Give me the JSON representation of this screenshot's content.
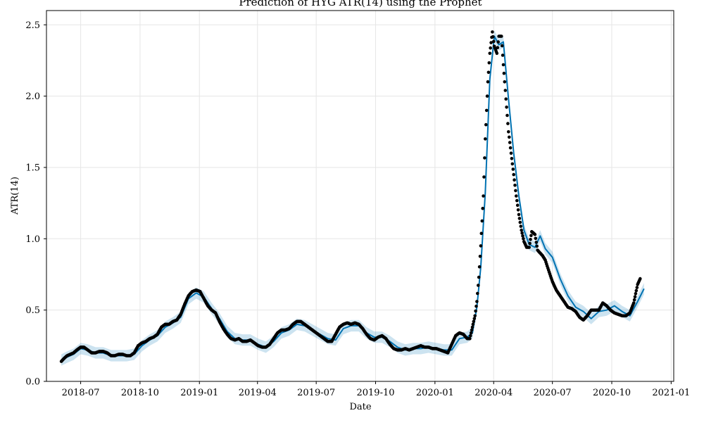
{
  "chart_data": {
    "type": "line",
    "title": "Prediction of HYG  ATR(14) using the Prophet",
    "xlabel": "Date",
    "ylabel": "ATR(14)",
    "ylim": [
      0,
      2.6
    ],
    "xlim": [
      "2018-05-09",
      "2021-01-05"
    ],
    "grid": true,
    "x_ticks": [
      {
        "date": "2018-07-01",
        "label": "2018-07"
      },
      {
        "date": "2018-10-01",
        "label": "2018-10"
      },
      {
        "date": "2019-01-01",
        "label": "2019-01"
      },
      {
        "date": "2019-04-01",
        "label": "2019-04"
      },
      {
        "date": "2019-07-01",
        "label": "2019-07"
      },
      {
        "date": "2019-10-01",
        "label": "2019-10"
      },
      {
        "date": "2020-01-01",
        "label": "2020-01"
      },
      {
        "date": "2020-04-01",
        "label": "2020-04"
      },
      {
        "date": "2020-07-01",
        "label": "2020-07"
      },
      {
        "date": "2020-10-01",
        "label": "2020-10"
      },
      {
        "date": "2021-01-01",
        "label": "2021-01"
      }
    ],
    "y_ticks": [
      {
        "value": 0.0,
        "label": "0.0"
      },
      {
        "value": 0.5,
        "label": "0.5"
      },
      {
        "value": 1.0,
        "label": "1.0"
      },
      {
        "value": 1.5,
        "label": "1.5"
      },
      {
        "value": 2.0,
        "label": "2.0"
      },
      {
        "value": 2.5,
        "label": "2.5"
      }
    ],
    "colors": {
      "forecast": "#0072B2",
      "band": "#0072B2",
      "actual": "#000000",
      "grid": "#e6e6e6"
    },
    "series": [
      {
        "role": "actual",
        "x": [
          "2018-06-01",
          "2018-06-05",
          "2018-06-10",
          "2018-06-15",
          "2018-06-20",
          "2018-06-25",
          "2018-07-01",
          "2018-07-06",
          "2018-07-12",
          "2018-07-18",
          "2018-07-24",
          "2018-07-30",
          "2018-08-05",
          "2018-08-11",
          "2018-08-17",
          "2018-08-23",
          "2018-08-29",
          "2018-09-04",
          "2018-09-10",
          "2018-09-16",
          "2018-09-22",
          "2018-09-28",
          "2018-10-04",
          "2018-10-10",
          "2018-10-16",
          "2018-10-22",
          "2018-10-28",
          "2018-11-03",
          "2018-11-09",
          "2018-11-15",
          "2018-11-21",
          "2018-11-27",
          "2018-12-03",
          "2018-12-09",
          "2018-12-15",
          "2018-12-21",
          "2018-12-27",
          "2019-01-02",
          "2019-01-08",
          "2019-01-14",
          "2019-01-20",
          "2019-01-26",
          "2019-02-01",
          "2019-02-07",
          "2019-02-13",
          "2019-02-19",
          "2019-02-25",
          "2019-03-03",
          "2019-03-09",
          "2019-03-15",
          "2019-03-21",
          "2019-03-27",
          "2019-04-02",
          "2019-04-08",
          "2019-04-14",
          "2019-04-20",
          "2019-04-26",
          "2019-05-02",
          "2019-05-08",
          "2019-05-14",
          "2019-05-20",
          "2019-05-26",
          "2019-06-01",
          "2019-06-07",
          "2019-06-13",
          "2019-06-19",
          "2019-06-25",
          "2019-07-01",
          "2019-07-07",
          "2019-07-13",
          "2019-07-19",
          "2019-07-25",
          "2019-07-31",
          "2019-08-06",
          "2019-08-12",
          "2019-08-18",
          "2019-08-24",
          "2019-08-30",
          "2019-09-05",
          "2019-09-11",
          "2019-09-17",
          "2019-09-23",
          "2019-09-29",
          "2019-10-05",
          "2019-10-11",
          "2019-10-17",
          "2019-10-23",
          "2019-10-29",
          "2019-11-04",
          "2019-11-10",
          "2019-11-16",
          "2019-11-22",
          "2019-11-28",
          "2019-12-04",
          "2019-12-10",
          "2019-12-16",
          "2019-12-22",
          "2019-12-28",
          "2020-01-03",
          "2020-01-09",
          "2020-01-15",
          "2020-01-21",
          "2020-01-27",
          "2020-02-02",
          "2020-02-08",
          "2020-02-14",
          "2020-02-20",
          "2020-02-24",
          "2020-02-28",
          "2020-03-03",
          "2020-03-06",
          "2020-03-09",
          "2020-03-12",
          "2020-03-16",
          "2020-03-19",
          "2020-03-23",
          "2020-03-26",
          "2020-03-30",
          "2020-04-02",
          "2020-04-06",
          "2020-04-09",
          "2020-04-13",
          "2020-04-16",
          "2020-04-20",
          "2020-04-24",
          "2020-04-28",
          "2020-05-02",
          "2020-05-06",
          "2020-05-10",
          "2020-05-14",
          "2020-05-18",
          "2020-05-22",
          "2020-05-26",
          "2020-05-30",
          "2020-06-04",
          "2020-06-08",
          "2020-06-12",
          "2020-06-16",
          "2020-06-20",
          "2020-06-25",
          "2020-07-01",
          "2020-07-07",
          "2020-07-13",
          "2020-07-19",
          "2020-07-25",
          "2020-07-31",
          "2020-08-06",
          "2020-08-12",
          "2020-08-18",
          "2020-08-24",
          "2020-08-30",
          "2020-09-05",
          "2020-09-11",
          "2020-09-17",
          "2020-09-23",
          "2020-09-29",
          "2020-10-05",
          "2020-10-11",
          "2020-10-17",
          "2020-10-23",
          "2020-10-29",
          "2020-11-04",
          "2020-11-10",
          "2020-11-14"
        ],
        "y": [
          0.14,
          0.16,
          0.18,
          0.19,
          0.2,
          0.22,
          0.24,
          0.24,
          0.22,
          0.2,
          0.2,
          0.21,
          0.21,
          0.2,
          0.18,
          0.18,
          0.19,
          0.19,
          0.18,
          0.18,
          0.2,
          0.25,
          0.27,
          0.28,
          0.3,
          0.31,
          0.33,
          0.38,
          0.4,
          0.4,
          0.42,
          0.43,
          0.47,
          0.54,
          0.6,
          0.63,
          0.64,
          0.63,
          0.58,
          0.53,
          0.5,
          0.48,
          0.42,
          0.37,
          0.33,
          0.3,
          0.29,
          0.3,
          0.28,
          0.28,
          0.29,
          0.27,
          0.25,
          0.24,
          0.24,
          0.26,
          0.3,
          0.34,
          0.36,
          0.36,
          0.37,
          0.4,
          0.42,
          0.42,
          0.4,
          0.38,
          0.36,
          0.34,
          0.32,
          0.3,
          0.28,
          0.28,
          0.33,
          0.38,
          0.4,
          0.41,
          0.4,
          0.41,
          0.4,
          0.37,
          0.33,
          0.3,
          0.29,
          0.31,
          0.32,
          0.3,
          0.26,
          0.23,
          0.22,
          0.22,
          0.23,
          0.22,
          0.23,
          0.24,
          0.25,
          0.24,
          0.24,
          0.23,
          0.23,
          0.22,
          0.21,
          0.2,
          0.26,
          0.32,
          0.34,
          0.33,
          0.3,
          0.3,
          0.38,
          0.46,
          0.56,
          0.73,
          0.95,
          1.3,
          1.7,
          2.1,
          2.3,
          2.45,
          2.35,
          2.3,
          2.42,
          2.42,
          2.22,
          1.98,
          1.75,
          1.6,
          1.45,
          1.3,
          1.17,
          1.06,
          0.98,
          0.94,
          0.94,
          1.05,
          1.03,
          0.92,
          0.9,
          0.88,
          0.85,
          0.78,
          0.7,
          0.64,
          0.6,
          0.56,
          0.52,
          0.51,
          0.49,
          0.45,
          0.43,
          0.46,
          0.5,
          0.5,
          0.5,
          0.55,
          0.53,
          0.5,
          0.48,
          0.47,
          0.46,
          0.46,
          0.48,
          0.55,
          0.68,
          0.72
        ]
      },
      {
        "role": "forecast",
        "x": [
          "2018-06-01",
          "2018-06-10",
          "2018-06-20",
          "2018-07-01",
          "2018-07-12",
          "2018-07-24",
          "2018-08-05",
          "2018-08-17",
          "2018-08-29",
          "2018-09-10",
          "2018-09-22",
          "2018-10-04",
          "2018-10-16",
          "2018-10-28",
          "2018-11-09",
          "2018-11-21",
          "2018-12-03",
          "2018-12-15",
          "2018-12-27",
          "2019-01-08",
          "2019-01-20",
          "2019-02-01",
          "2019-02-13",
          "2019-02-25",
          "2019-03-09",
          "2019-03-21",
          "2019-04-02",
          "2019-04-14",
          "2019-04-26",
          "2019-05-08",
          "2019-05-20",
          "2019-06-01",
          "2019-06-13",
          "2019-06-25",
          "2019-07-07",
          "2019-07-19",
          "2019-07-31",
          "2019-08-12",
          "2019-08-24",
          "2019-09-05",
          "2019-09-17",
          "2019-09-29",
          "2019-10-11",
          "2019-10-23",
          "2019-11-04",
          "2019-11-16",
          "2019-11-28",
          "2019-12-10",
          "2019-12-22",
          "2020-01-03",
          "2020-01-15",
          "2020-01-27",
          "2020-02-08",
          "2020-02-20",
          "2020-02-28",
          "2020-03-06",
          "2020-03-12",
          "2020-03-19",
          "2020-03-26",
          "2020-04-02",
          "2020-04-09",
          "2020-04-16",
          "2020-04-24",
          "2020-05-02",
          "2020-05-10",
          "2020-05-18",
          "2020-05-26",
          "2020-06-04",
          "2020-06-12",
          "2020-06-20",
          "2020-07-01",
          "2020-07-13",
          "2020-07-25",
          "2020-08-06",
          "2020-08-18",
          "2020-08-30",
          "2020-09-11",
          "2020-09-23",
          "2020-10-05",
          "2020-10-17",
          "2020-10-29",
          "2020-11-10",
          "2020-11-20"
        ],
        "y": [
          0.15,
          0.17,
          0.19,
          0.23,
          0.22,
          0.2,
          0.2,
          0.18,
          0.18,
          0.18,
          0.19,
          0.25,
          0.29,
          0.32,
          0.38,
          0.41,
          0.45,
          0.58,
          0.62,
          0.59,
          0.51,
          0.44,
          0.35,
          0.3,
          0.29,
          0.29,
          0.26,
          0.24,
          0.28,
          0.34,
          0.36,
          0.4,
          0.39,
          0.36,
          0.33,
          0.3,
          0.29,
          0.37,
          0.39,
          0.39,
          0.34,
          0.31,
          0.31,
          0.28,
          0.24,
          0.22,
          0.23,
          0.23,
          0.24,
          0.23,
          0.22,
          0.22,
          0.3,
          0.31,
          0.34,
          0.52,
          0.8,
          1.32,
          2.12,
          2.42,
          2.36,
          2.38,
          1.98,
          1.6,
          1.3,
          1.06,
          0.96,
          0.94,
          1.02,
          0.93,
          0.87,
          0.72,
          0.6,
          0.52,
          0.49,
          0.44,
          0.49,
          0.5,
          0.53,
          0.49,
          0.46,
          0.56,
          0.65
        ]
      }
    ]
  }
}
